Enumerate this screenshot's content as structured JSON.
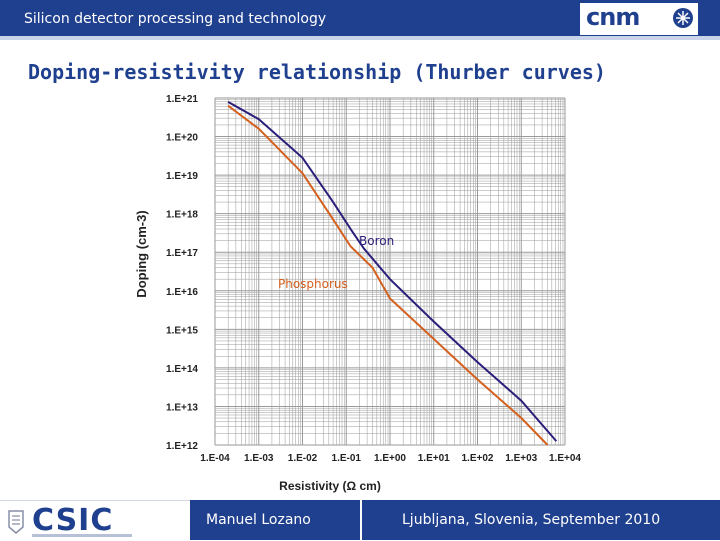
{
  "header": {
    "title": "Silicon detector processing and technology",
    "logo_text": "cnm"
  },
  "slide": {
    "title": "Doping-resistivity relationship (Thurber curves)"
  },
  "footer": {
    "logo_text": "CSIC",
    "author": "Manuel Lozano",
    "venue": "Ljubljana, Slovenia, September 2010"
  },
  "colors": {
    "brand_blue": "#1f3f8f",
    "boron": "#2a1f7a",
    "phosphorus": "#d4601e",
    "grid": "#9a9a9a"
  },
  "chart_data": {
    "type": "line",
    "title": "",
    "xlabel": "Resistivity (Ω cm)",
    "ylabel": "Doping (cm-3)",
    "x_scale": "log",
    "y_scale": "log",
    "xlim_exp": [
      -4,
      4
    ],
    "ylim_exp": [
      12,
      21
    ],
    "x_tick_labels": [
      "1.E-04",
      "1.E-03",
      "1.E-02",
      "1.E-01",
      "1.E+00",
      "1.E+01",
      "1.E+02",
      "1.E+03",
      "1.E+04"
    ],
    "y_tick_labels": [
      "1.E+12",
      "1.E+13",
      "1.E+14",
      "1.E+15",
      "1.E+16",
      "1.E+17",
      "1.E+18",
      "1.E+19",
      "1.E+20",
      "1.E+21"
    ],
    "grid": true,
    "series": [
      {
        "name": "Boron",
        "color": "#2a1f7a",
        "points": [
          [
            -3.7,
            20.9
          ],
          [
            -3.0,
            20.45
          ],
          [
            -2.0,
            19.45
          ],
          [
            -1.3,
            18.3
          ],
          [
            -0.9,
            17.6
          ],
          [
            -0.6,
            17.1
          ],
          [
            0.0,
            16.3
          ],
          [
            1.0,
            15.2
          ],
          [
            2.0,
            14.15
          ],
          [
            3.0,
            13.15
          ],
          [
            3.8,
            12.1
          ]
        ]
      },
      {
        "name": "Phosphorus",
        "color": "#d4601e",
        "points": [
          [
            -3.7,
            20.8
          ],
          [
            -3.0,
            20.2
          ],
          [
            -2.0,
            19.05
          ],
          [
            -1.3,
            17.85
          ],
          [
            -0.9,
            17.15
          ],
          [
            -0.4,
            16.6
          ],
          [
            0.0,
            15.8
          ],
          [
            1.0,
            14.75
          ],
          [
            2.0,
            13.7
          ],
          [
            3.0,
            12.7
          ],
          [
            3.6,
            12.0
          ]
        ]
      }
    ]
  }
}
